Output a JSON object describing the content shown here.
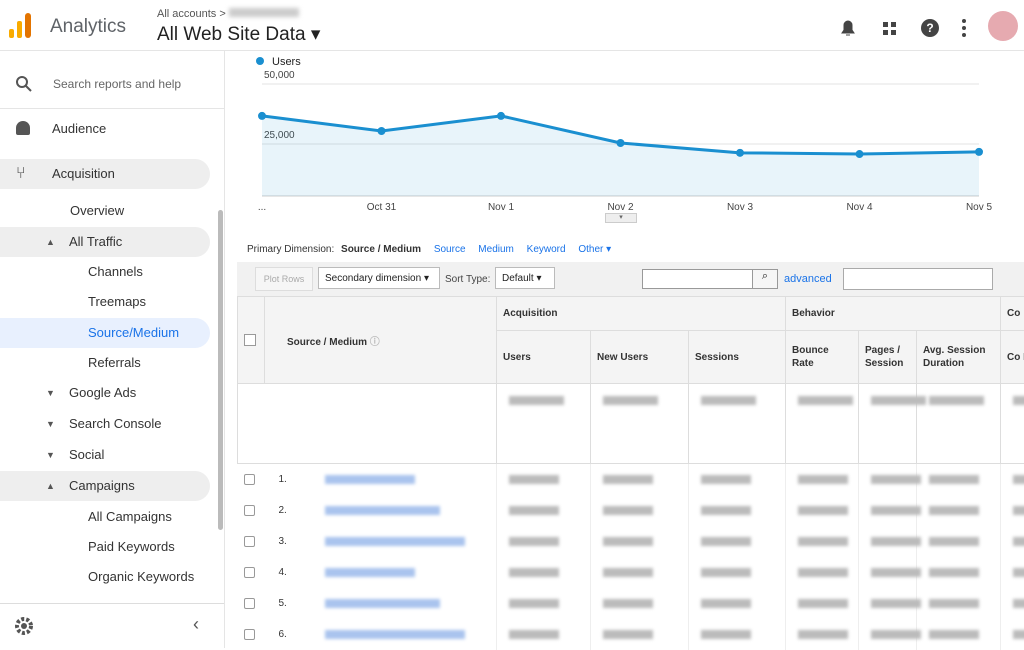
{
  "header": {
    "app_name": "Analytics",
    "breadcrumb": "All accounts",
    "property": "All Web Site Data"
  },
  "sidebar": {
    "search_placeholder": "Search reports and help",
    "items": [
      "Audience",
      "Acquisition",
      "Overview",
      "All Traffic",
      "Channels",
      "Treemaps",
      "Source/Medium",
      "Referrals",
      "Google Ads",
      "Search Console",
      "Social",
      "Campaigns",
      "All Campaigns",
      "Paid Keywords",
      "Organic Keywords"
    ]
  },
  "chart_data": {
    "type": "line",
    "categories": [
      "...",
      "Oct 31",
      "Nov 1",
      "Nov 2",
      "Nov 3",
      "Nov 4",
      "Nov 5"
    ],
    "series": [
      {
        "name": "Users",
        "color": "#1a8fd0",
        "values": [
          36700,
          30400,
          36700,
          25400,
          21300,
          20800,
          21700
        ]
      }
    ],
    "ylim": [
      3300,
      50000
    ],
    "yticks": [
      {
        "value": 50000,
        "label": "50,000"
      },
      {
        "value": 25000,
        "label": "25,000"
      }
    ],
    "grid": true
  },
  "dimension_bar": {
    "label": "Primary Dimension:",
    "options": [
      "Source / Medium",
      "Source",
      "Medium",
      "Keyword",
      "Other"
    ]
  },
  "toolbar": {
    "plot_rows": "Plot Rows",
    "secondary_dimension": "Secondary dimension",
    "sort_type_label": "Sort Type:",
    "sort_type": "Default",
    "advanced": "advanced"
  },
  "table": {
    "dimension_header": "Source / Medium",
    "groups": [
      "Acquisition",
      "Behavior",
      "Co"
    ],
    "columns": [
      "Users",
      "New Users",
      "Sessions",
      "Bounce Rate",
      "Pages / Session",
      "Avg. Session Duration",
      "Co R"
    ],
    "rows": [
      "1.",
      "2.",
      "3.",
      "4.",
      "5.",
      "6."
    ]
  }
}
